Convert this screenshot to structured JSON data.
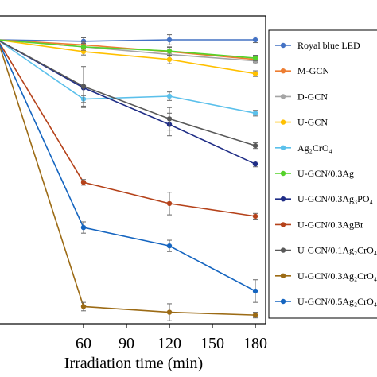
{
  "chart_data": {
    "type": "line",
    "xlabel": "Irradiation time (min)",
    "x": [
      0,
      60,
      120,
      180
    ],
    "x_ticks": [
      "60",
      "90",
      "120",
      "150",
      "180"
    ],
    "x_tick_values": [
      60,
      90,
      120,
      150,
      180
    ],
    "xlim": [
      0,
      180
    ],
    "ylim": [
      0,
      1
    ],
    "grid": false,
    "legend_position": "right",
    "series": [
      {
        "name": "Royal blue LED",
        "color": "#4472c4",
        "values": [
          1.0,
          0.995,
          1.0,
          1.0
        ],
        "err": [
          0,
          0.012,
          0.018,
          0.01
        ]
      },
      {
        "name": "M-GCN",
        "color": "#ed7d31",
        "values": [
          1.0,
          0.982,
          0.958,
          0.93
        ],
        "err": [
          0,
          0.012,
          0.015,
          0.01
        ]
      },
      {
        "name": "D-GCN",
        "color": "#a5a5a5",
        "values": [
          1.0,
          0.975,
          0.948,
          0.925
        ],
        "err": [
          0,
          0.012,
          0.015,
          0.01
        ]
      },
      {
        "name": "U-GCN",
        "color": "#ffc000",
        "values": [
          1.0,
          0.958,
          0.93,
          0.88
        ],
        "err": [
          0,
          0.012,
          0.015,
          0.01
        ]
      },
      {
        "name": "Ag₂CrO₄",
        "color": "#5bc0eb",
        "values": [
          1.0,
          0.79,
          0.8,
          0.74
        ],
        "err": [
          0,
          0.012,
          0.015,
          0.01
        ]
      },
      {
        "name": "U-GCN/0.3Ag",
        "color": "#55d22a",
        "values": [
          1.0,
          0.975,
          0.96,
          0.935
        ],
        "err": [
          0,
          0.012,
          0.015,
          0.01
        ]
      },
      {
        "name": "U-GCN/0.3Ag₃PO₄",
        "color": "#1f2d86",
        "values": [
          1.0,
          0.83,
          0.7,
          0.56
        ],
        "err": [
          0,
          0.07,
          0.04,
          0.01
        ]
      },
      {
        "name": "U-GCN/0.3AgBr",
        "color": "#b5421a",
        "values": [
          1.0,
          0.495,
          0.42,
          0.375
        ],
        "err": [
          0,
          0.01,
          0.04,
          0.01
        ]
      },
      {
        "name": "U-GCN/0.1Ag₂CrO₄",
        "color": "#595959",
        "values": [
          1.0,
          0.835,
          0.72,
          0.625
        ],
        "err": [
          0,
          0.07,
          0.04,
          0.01
        ]
      },
      {
        "name": "U-GCN/0.3Ag₂CrO₄",
        "color": "#9c6b15",
        "values": [
          1.0,
          0.055,
          0.035,
          0.025
        ],
        "err": [
          0,
          0.015,
          0.03,
          0.01
        ]
      },
      {
        "name": "U-GCN/0.5Ag₂CrO₄",
        "color": "#1565c0",
        "values": [
          1.0,
          0.335,
          0.27,
          0.11
        ],
        "err": [
          0,
          0.02,
          0.02,
          0.04
        ]
      }
    ]
  }
}
